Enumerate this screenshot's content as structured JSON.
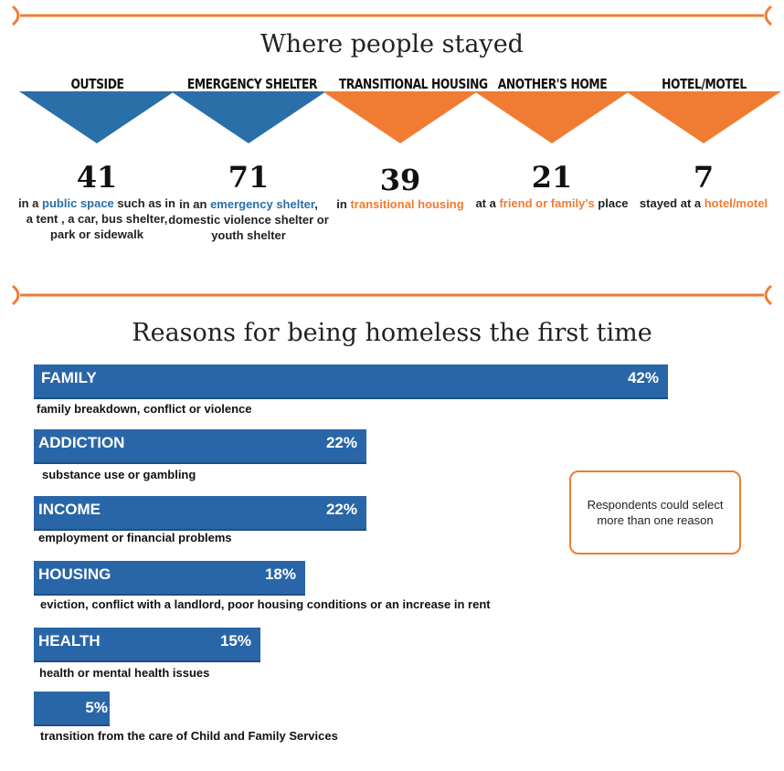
{
  "stayed": {
    "title": "Where people stayed",
    "categories": [
      {
        "label": "OUTSIDE",
        "count": "41",
        "color": "#2a6fa8",
        "desc_pre": "in a ",
        "desc_hl": "public space",
        "desc_post": " such as in a tent , a car, bus shelter, park or sidewalk",
        "hl_color": "blue"
      },
      {
        "label": "EMERGENCY SHELTER",
        "count": "71",
        "color": "#2a6fa8",
        "desc_pre": "in an ",
        "desc_hl": "emergency shelter",
        "desc_post": ", domestic violence shelter or youth shelter",
        "hl_color": "blue"
      },
      {
        "label": "TRANSITIONAL HOUSING",
        "count": "39",
        "color": "#f07c33",
        "desc_pre": "in ",
        "desc_hl": "transitional housing",
        "desc_post": "",
        "hl_color": "orange"
      },
      {
        "label": "ANOTHER'S HOME",
        "count": "21",
        "color": "#f07c33",
        "desc_pre": "at a ",
        "desc_hl": "friend or family's",
        "desc_post": " place",
        "hl_color": "orange"
      },
      {
        "label": "HOTEL/MOTEL",
        "count": "7",
        "color": "#f07c33",
        "desc_pre": "stayed at a ",
        "desc_hl": "hotel/motel",
        "desc_post": "",
        "hl_color": "orange"
      }
    ]
  },
  "reasons": {
    "title": "Reasons for being homeless the first time",
    "note": "Respondents could select more than one reason"
  },
  "chart_data": {
    "type": "bar",
    "orientation": "horizontal",
    "title": "Reasons for being homeless the first time",
    "categories": [
      "FAMILY",
      "ADDICTION",
      "INCOME",
      "HOUSING",
      "HEALTH",
      ""
    ],
    "values": [
      42,
      22,
      22,
      18,
      15,
      5
    ],
    "value_labels": [
      "42%",
      "22%",
      "22%",
      "18%",
      "15%",
      "5%"
    ],
    "descriptions": [
      "family breakdown, conflict or violence",
      "substance use or gambling",
      "employment or financial problems",
      "eviction, conflict with a landlord, poor housing conditions or an increase in rent",
      "health or mental health issues",
      "transition from the care of Child and Family Services"
    ],
    "bar_color": "#2966a8",
    "xlim": [
      0,
      42
    ]
  },
  "colors": {
    "blue": "#2a6fa8",
    "orange": "#f07c33"
  }
}
